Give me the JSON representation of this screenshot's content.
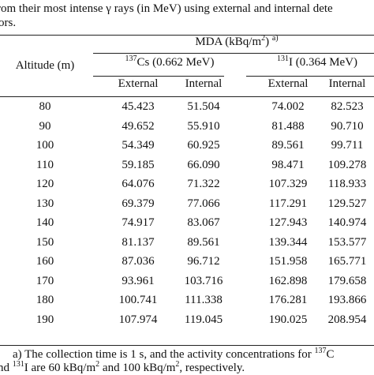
{
  "caption": {
    "line1": "rom their most intense γ rays (in MeV) using external and internal dete",
    "line2": "ors."
  },
  "header": {
    "altitude": "Altitude (m)",
    "mda": {
      "text": "MDA (kBq/m",
      "sup": "2",
      "close": ")",
      "note": "a)"
    },
    "cs": {
      "mass": "137",
      "text": "Cs (0.662 MeV)"
    },
    "iodine": {
      "mass": "131",
      "text": "I (0.364 MeV)"
    },
    "columns": [
      "External",
      "Internal",
      "External",
      "Internal"
    ]
  },
  "table": {
    "rows": [
      [
        "80",
        "45.423",
        "51.504",
        "74.002",
        "82.523"
      ],
      [
        "90",
        "49.652",
        "55.910",
        "81.488",
        "90.710"
      ],
      [
        "100",
        "54.349",
        "60.925",
        "89.561",
        "99.711"
      ],
      [
        "110",
        "59.185",
        "66.090",
        "98.471",
        "109.278"
      ],
      [
        "120",
        "64.076",
        "71.322",
        "107.329",
        "118.933"
      ],
      [
        "130",
        "69.379",
        "77.066",
        "117.291",
        "129.527"
      ],
      [
        "140",
        "74.917",
        "83.067",
        "127.943",
        "140.974"
      ],
      [
        "150",
        "81.137",
        "89.561",
        "139.344",
        "153.577"
      ],
      [
        "160",
        "87.036",
        "96.712",
        "151.958",
        "165.771"
      ],
      [
        "170",
        "93.961",
        "103.716",
        "162.898",
        "179.658"
      ],
      [
        "180",
        "100.741",
        "111.338",
        "176.281",
        "193.866"
      ],
      [
        "190",
        "107.974",
        "119.045",
        "190.025",
        "208.954"
      ]
    ]
  },
  "footnote": {
    "line1": {
      "text": "a) The collection time is 1 s, and the activity concentrations for ",
      "sup": "137",
      "tail": "C"
    },
    "line2": {
      "lead": "nd ",
      "sup1": "131",
      "text1": "I are 60 kBq/m",
      "sup2": "2",
      "text2": " and 100 kBq/m",
      "sup3": "2",
      "text3": ", respectively."
    }
  }
}
